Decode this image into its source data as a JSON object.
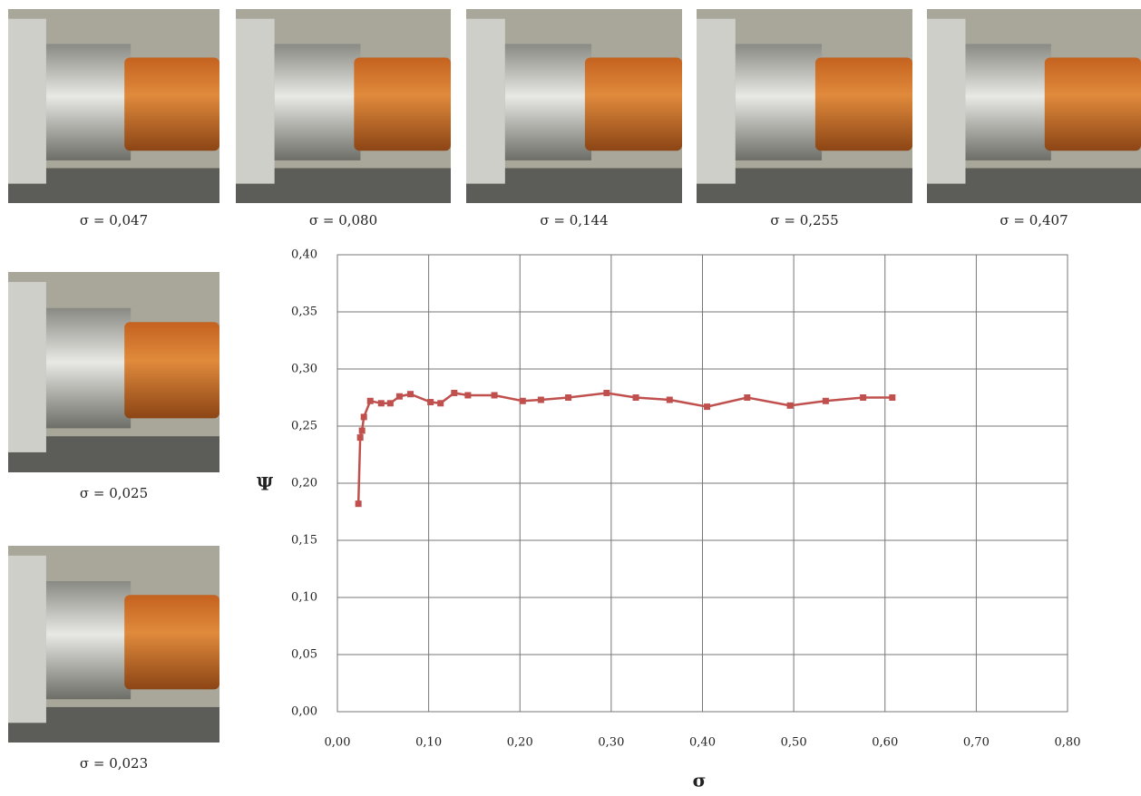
{
  "photos": [
    {
      "caption": "σ = 0,047"
    },
    {
      "caption": "σ = 0,080"
    },
    {
      "caption": "σ = 0,144"
    },
    {
      "caption": "σ = 0,255"
    },
    {
      "caption": "σ = 0,407"
    },
    {
      "caption": "σ = 0,025"
    },
    {
      "caption": "σ = 0,023"
    }
  ],
  "chart_data": {
    "type": "line",
    "x_label": "σ",
    "y_label": "Ψ",
    "x": [
      0.023,
      0.025,
      0.027,
      0.029,
      0.036,
      0.048,
      0.058,
      0.068,
      0.08,
      0.102,
      0.113,
      0.128,
      0.143,
      0.172,
      0.203,
      0.223,
      0.253,
      0.295,
      0.327,
      0.364,
      0.405,
      0.449,
      0.496,
      0.535,
      0.576,
      0.608
    ],
    "series": [
      {
        "color": "#c0504d",
        "values": [
          0.182,
          0.24,
          0.246,
          0.258,
          0.272,
          0.27,
          0.27,
          0.276,
          0.278,
          0.271,
          0.27,
          0.279,
          0.277,
          0.277,
          0.272,
          0.273,
          0.275,
          0.279,
          0.275,
          0.273,
          0.267,
          0.275,
          0.268,
          0.272,
          0.275,
          0.275
        ]
      }
    ],
    "xlim": [
      0,
      0.8
    ],
    "xticks": [
      {
        "value": 0,
        "label": "0,00"
      },
      {
        "value": 0.1,
        "label": "0,10"
      },
      {
        "value": 0.2,
        "label": "0,20"
      },
      {
        "value": 0.3,
        "label": "0,30"
      },
      {
        "value": 0.4,
        "label": "0,40"
      },
      {
        "value": 0.5,
        "label": "0,50"
      },
      {
        "value": 0.6,
        "label": "0,60"
      },
      {
        "value": 0.7,
        "label": "0,70"
      },
      {
        "value": 0.8,
        "label": "0,80"
      }
    ],
    "ylim": [
      0,
      0.4
    ],
    "yticks": [
      {
        "value": 0,
        "label": "0,00"
      },
      {
        "value": 0.05,
        "label": "0,05"
      },
      {
        "value": 0.1,
        "label": "0,10"
      },
      {
        "value": 0.15,
        "label": "0,15"
      },
      {
        "value": 0.2,
        "label": "0,20"
      },
      {
        "value": 0.25,
        "label": "0,25"
      },
      {
        "value": 0.3,
        "label": "0,30"
      },
      {
        "value": 0.35,
        "label": "0,35"
      },
      {
        "value": 0.4,
        "label": "0,40"
      }
    ],
    "grid": true
  }
}
